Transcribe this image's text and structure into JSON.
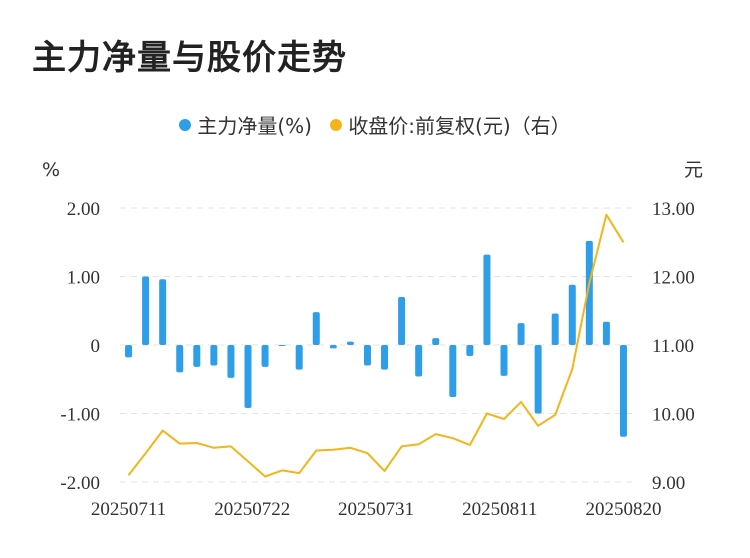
{
  "title": "主力净量与股价走势",
  "legend": [
    {
      "label": "主力净量(%)",
      "color": "#2f9ee8"
    },
    {
      "label": "收盘价:前复权(元)（右）",
      "color": "#f2b51c"
    }
  ],
  "chart_data": {
    "type": "bar+line",
    "title": "主力净量与股价走势",
    "left_axis": {
      "unit": "%",
      "ticks": [
        "2.00",
        "1.00",
        "0",
        "-1.00",
        "-2.00"
      ],
      "ylim": [
        -2,
        2
      ]
    },
    "right_axis": {
      "unit": "元",
      "ticks": [
        "13.00",
        "12.00",
        "11.00",
        "10.00",
        "9.00"
      ],
      "ylim": [
        9,
        13
      ]
    },
    "x_tick_labels": [
      "20250711",
      "20250722",
      "20250731",
      "20250811",
      "20250820"
    ],
    "grid": "horizontal dashed",
    "legend_position": "top-center",
    "series": [
      {
        "name": "主力净量(%)",
        "type": "bar",
        "color": "#2f9ee8",
        "values": [
          -0.18,
          1.0,
          0.96,
          -0.4,
          -0.32,
          -0.3,
          -0.48,
          -0.92,
          -0.32,
          -0.01,
          -0.36,
          0.48,
          -0.05,
          0.05,
          -0.3,
          -0.36,
          0.7,
          -0.46,
          0.1,
          -0.76,
          -0.16,
          1.32,
          -0.45,
          0.32,
          -1.0,
          0.46,
          0.88,
          1.52,
          0.34,
          -1.34
        ]
      },
      {
        "name": "收盘价:前复权(元)（右）",
        "type": "line",
        "color": "#f2b51c",
        "values": [
          9.1,
          9.42,
          9.75,
          9.56,
          9.57,
          9.5,
          9.52,
          9.3,
          9.08,
          9.17,
          9.13,
          9.46,
          9.47,
          9.5,
          9.42,
          9.16,
          9.52,
          9.55,
          9.7,
          9.64,
          9.54,
          10.0,
          9.92,
          10.17,
          9.82,
          9.98,
          10.65,
          11.9,
          12.9,
          12.5
        ]
      }
    ]
  }
}
